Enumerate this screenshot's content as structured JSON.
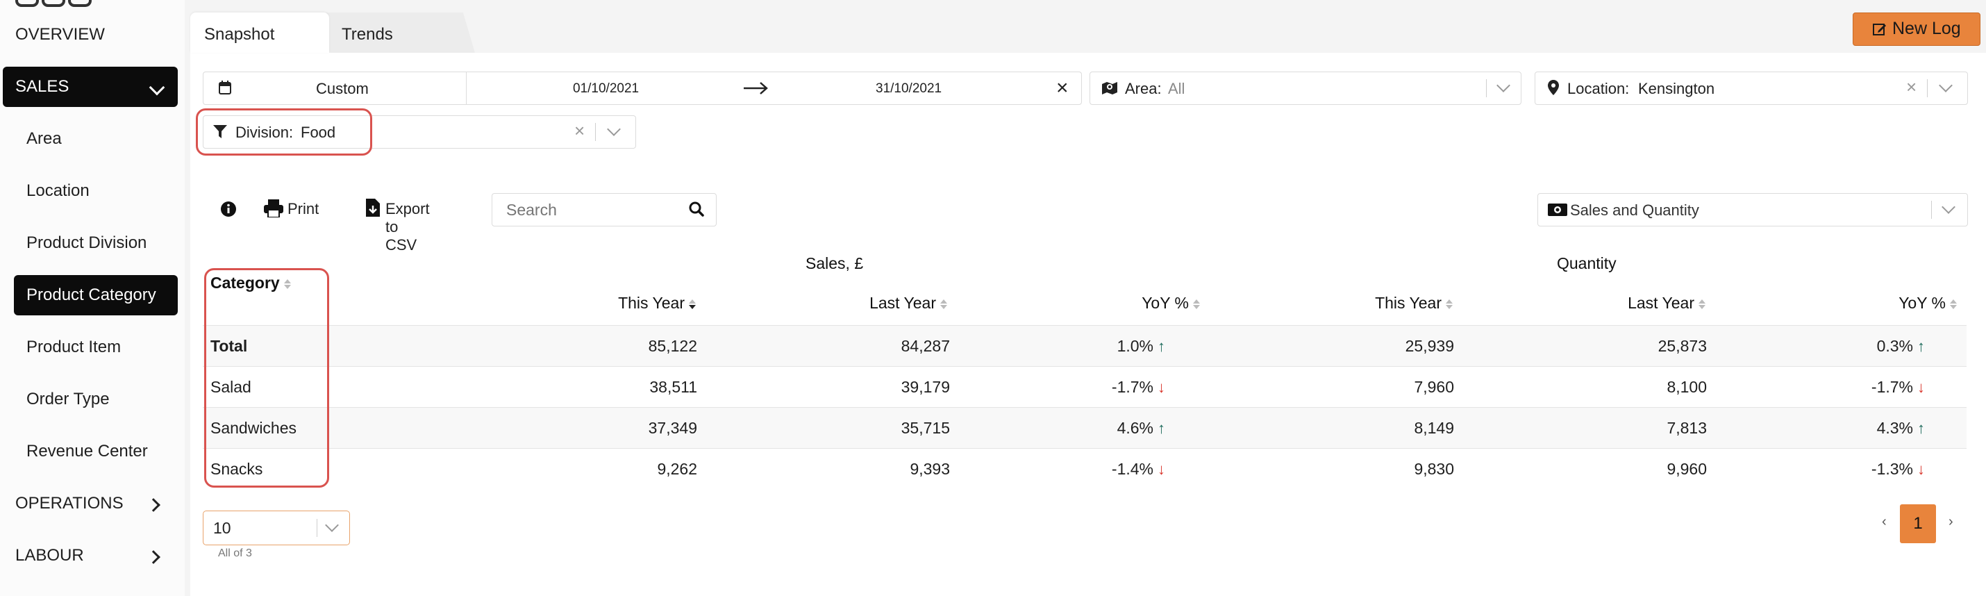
{
  "sidebar": {
    "overview": "OVERVIEW",
    "sales": "SALES",
    "sub_items": [
      "Area",
      "Location",
      "Product Division",
      "Product Category",
      "Product Item",
      "Order Type",
      "Revenue Center"
    ],
    "operations": "OPERATIONS",
    "labour": "LABOUR"
  },
  "tabs": {
    "snapshot": "Snapshot",
    "trends": "Trends"
  },
  "header": {
    "new_log": "New Log"
  },
  "filters": {
    "date_mode": "Custom",
    "start_date": "01/10/2021",
    "end_date": "31/10/2021",
    "area_label": "Area:",
    "area_value": "All",
    "location_label": "Location:",
    "location_value": "Kensington",
    "division_label": "Division:",
    "division_value": "Food"
  },
  "toolbar": {
    "print": "Print",
    "export": "Export to CSV",
    "search_placeholder": "Search",
    "view_select": "Sales and Quantity"
  },
  "table": {
    "group_sales": "Sales, £",
    "group_quantity": "Quantity",
    "category_header": "Category",
    "columns": [
      "This Year",
      "Last Year",
      "YoY %",
      "This Year",
      "Last Year",
      "YoY %"
    ],
    "rows": [
      {
        "category": "Total",
        "sales_ty": "85,122",
        "sales_ly": "84,287",
        "sales_yoy": "1.0%",
        "sales_dir": "up",
        "qty_ty": "25,939",
        "qty_ly": "25,873",
        "qty_yoy": "0.3%",
        "qty_dir": "up"
      },
      {
        "category": "Salad",
        "sales_ty": "38,511",
        "sales_ly": "39,179",
        "sales_yoy": "-1.7%",
        "sales_dir": "down",
        "qty_ty": "7,960",
        "qty_ly": "8,100",
        "qty_yoy": "-1.7%",
        "qty_dir": "down"
      },
      {
        "category": "Sandwiches",
        "sales_ty": "37,349",
        "sales_ly": "35,715",
        "sales_yoy": "4.6%",
        "sales_dir": "up",
        "qty_ty": "8,149",
        "qty_ly": "7,813",
        "qty_yoy": "4.3%",
        "qty_dir": "up"
      },
      {
        "category": "Snacks",
        "sales_ty": "9,262",
        "sales_ly": "9,393",
        "sales_yoy": "-1.4%",
        "sales_dir": "down",
        "qty_ty": "9,830",
        "qty_ly": "9,960",
        "qty_yoy": "-1.3%",
        "qty_dir": "down"
      }
    ]
  },
  "pagination": {
    "page_size": "10",
    "count_text": "All of 3",
    "prev": "‹",
    "current_page": "1",
    "next": "›"
  },
  "colors": {
    "accent": "#e8843c",
    "highlight": "#d9534f",
    "up": "#1f6b5c",
    "down": "#d9352b"
  }
}
